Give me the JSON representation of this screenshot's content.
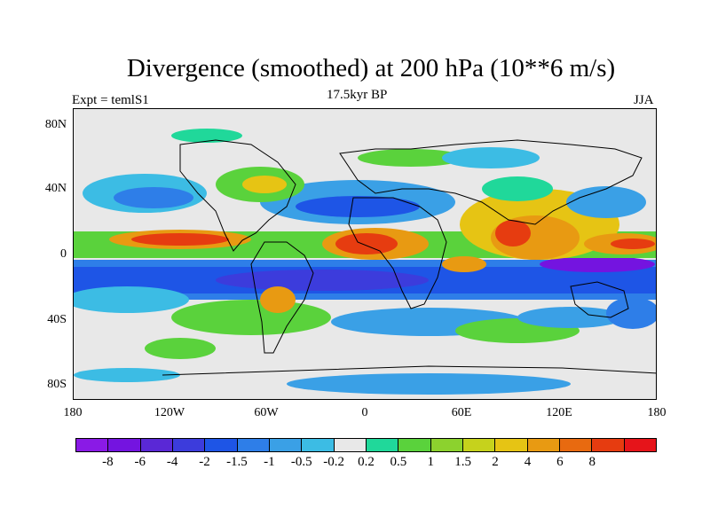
{
  "title": "Divergence (smoothed) at 200 hPa (10**6 m/s)",
  "subtitle_left": "Expt = temlS1",
  "subtitle_center": "17.5kyr BP",
  "subtitle_right": "JJA",
  "y_ticks": [
    "80N",
    "40N",
    "0",
    "40S",
    "80S"
  ],
  "x_ticks": [
    "180",
    "120W",
    "60W",
    "0",
    "60E",
    "120E",
    "180"
  ],
  "colorbar": {
    "colors": [
      "#8a1ae6",
      "#7414e0",
      "#5a28d6",
      "#3c3cdc",
      "#1e55e6",
      "#2e7ee8",
      "#3aa0e6",
      "#3cbce4",
      "#e8e8e8",
      "#20d89a",
      "#5ad23c",
      "#8cd22e",
      "#c6d21c",
      "#e6c414",
      "#e89a12",
      "#e86a10",
      "#e63c10",
      "#e6141a"
    ],
    "labels": [
      "-8",
      "-6",
      "-4",
      "-2",
      "-1.5",
      "-1",
      "-0.5",
      "-0.2",
      "0.2",
      "0.5",
      "1",
      "1.5",
      "2",
      "4",
      "6",
      "8"
    ]
  }
}
